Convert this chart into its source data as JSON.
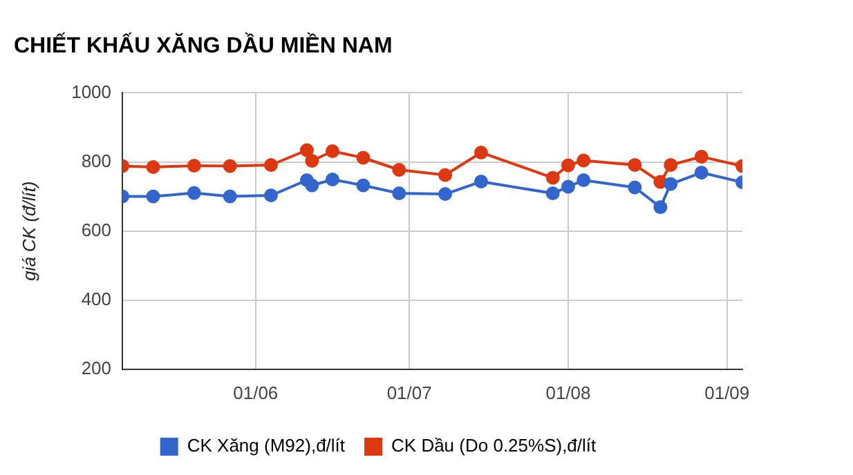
{
  "chart_data": {
    "type": "line",
    "title": "CHIẾT KHẤU XĂNG DẦU MIỀN NAM",
    "ylabel": "giá CK (đ/lít)",
    "x": [
      "--05-06",
      "--05-12",
      "--05-20",
      "--05-27",
      "--06-04",
      "--06-11",
      "--06-12",
      "--06-16",
      "--06-22",
      "--06-29",
      "--07-08",
      "--07-15",
      "--07-29",
      "--08-01",
      "--08-04",
      "--08-14",
      "--08-19",
      "--08-21",
      "--08-27",
      "--09-04"
    ],
    "series": [
      {
        "name": "CK Xăng (M92),đ/lít",
        "color": "#3366cc",
        "values": [
          700,
          700,
          710,
          700,
          703,
          747,
          732,
          749,
          732,
          709,
          707,
          743,
          709,
          728,
          747,
          726,
          669,
          736,
          769,
          741
        ]
      },
      {
        "name": "CK Dầu (Do 0.25%S),đ/lít",
        "color": "#dc3912",
        "values": [
          788,
          785,
          789,
          788,
          791,
          834,
          803,
          831,
          812,
          777,
          762,
          827,
          754,
          790,
          804,
          791,
          742,
          791,
          815,
          788
        ]
      }
    ],
    "xlim": [
      "--05-06",
      "--09-04"
    ],
    "xticks": [
      {
        "value": "--06-01",
        "label": "01/06"
      },
      {
        "value": "--07-01",
        "label": "01/07"
      },
      {
        "value": "--08-01",
        "label": "01/08"
      },
      {
        "value": "--09-01",
        "label": "01/09"
      }
    ],
    "ylim": [
      200,
      1000
    ],
    "yticks": [
      200,
      400,
      600,
      800,
      1000
    ],
    "grid": true,
    "legend": "bottom",
    "marker": "circle",
    "line_style": "solid"
  }
}
